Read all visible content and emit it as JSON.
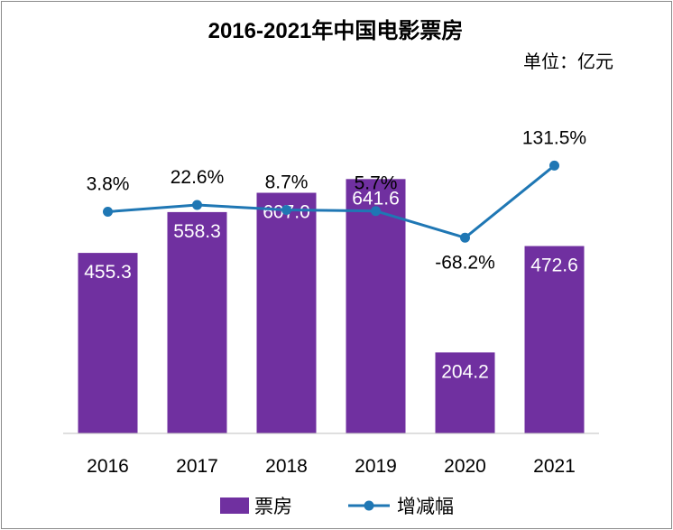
{
  "chart_data": {
    "type": "bar",
    "title": "2016-2021年中国电影票房",
    "unit_label": "单位：亿元",
    "categories": [
      "2016",
      "2017",
      "2018",
      "2019",
      "2020",
      "2021"
    ],
    "series": [
      {
        "name": "票房",
        "kind": "bar",
        "values": [
          455.3,
          558.3,
          607.0,
          641.6,
          204.2,
          472.6
        ],
        "labels": [
          "455.3",
          "558.3",
          "607.0",
          "641.6",
          "204.2",
          "472.6"
        ]
      },
      {
        "name": "增减幅",
        "kind": "line",
        "values": [
          3.8,
          22.6,
          8.7,
          5.7,
          -68.2,
          131.5
        ],
        "labels": [
          "3.8%",
          "22.6%",
          "8.7%",
          "5.7%",
          "-68.2%",
          "131.5%"
        ]
      }
    ],
    "bar_ylim": [
      0,
      820
    ],
    "line_ylim": [
      -150,
      350
    ],
    "legend": {
      "position": "bottom",
      "items": [
        "票房",
        "增减幅"
      ]
    },
    "colors": {
      "bar": "#7030A0",
      "line": "#1F77B4",
      "axis": "#bfbfbf",
      "text": "#000000",
      "bar_label": "#ffffff"
    }
  }
}
